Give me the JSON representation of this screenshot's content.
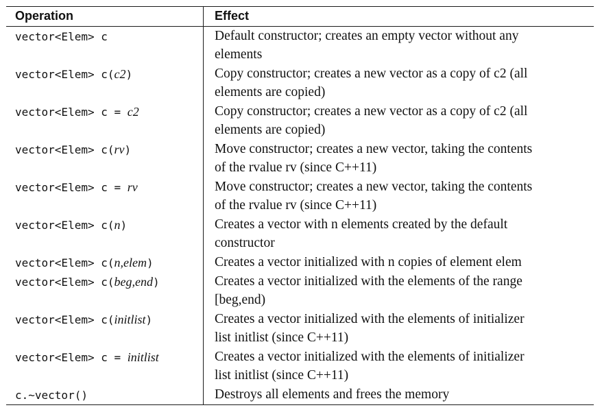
{
  "table": {
    "header": {
      "operation": "Operation",
      "effect": "Effect"
    },
    "rows": [
      {
        "op_prefix": "vector<Elem> c",
        "op_arg": "",
        "op_suffix": "",
        "effect": [
          "Default constructor; creates an empty vector without any",
          "elements"
        ]
      },
      {
        "op_prefix": "vector<Elem> c(",
        "op_arg": "c2",
        "op_suffix": ")",
        "effect": [
          "Copy constructor; creates a new vector as a copy of c2 (all",
          "elements are copied)"
        ]
      },
      {
        "op_prefix": "vector<Elem> c = ",
        "op_arg": "c2",
        "op_suffix": "",
        "effect": [
          "Copy constructor; creates a new vector as a copy of c2 (all",
          "elements are copied)"
        ]
      },
      {
        "op_prefix": "vector<Elem> c(",
        "op_arg": "rv",
        "op_suffix": ")",
        "effect": [
          "Move constructor; creates a new vector, taking the contents",
          "of the rvalue rv (since C++11)"
        ]
      },
      {
        "op_prefix": "vector<Elem> c = ",
        "op_arg": "rv",
        "op_suffix": "",
        "effect": [
          "Move constructor; creates a new vector, taking the contents",
          "of the rvalue rv (since C++11)"
        ]
      },
      {
        "op_prefix": "vector<Elem> c(",
        "op_arg": "n",
        "op_suffix": ")",
        "effect": [
          "Creates a vector with n elements created by the default",
          "constructor"
        ]
      },
      {
        "op_prefix": "vector<Elem> c(",
        "op_arg": "n,elem",
        "op_suffix": ")",
        "effect": [
          "Creates a vector initialized with n copies of element elem"
        ]
      },
      {
        "op_prefix": "vector<Elem> c(",
        "op_arg": "beg,end",
        "op_suffix": ")",
        "effect": [
          "Creates a vector initialized with the elements of the range",
          "[beg,end)"
        ]
      },
      {
        "op_prefix": "vector<Elem> c(",
        "op_arg": "initlist",
        "op_suffix": ")",
        "effect": [
          "Creates a vector initialized with the elements of initializer",
          "list initlist (since C++11)"
        ]
      },
      {
        "op_prefix": "vector<Elem> c = ",
        "op_arg": "initlist",
        "op_suffix": "",
        "effect": [
          "Creates a vector initialized with the elements of initializer",
          "list initlist (since C++11)"
        ]
      },
      {
        "op_prefix": "c.~vector()",
        "op_arg": "",
        "op_suffix": "",
        "effect": [
          "Destroys all elements and frees the memory"
        ]
      }
    ]
  }
}
